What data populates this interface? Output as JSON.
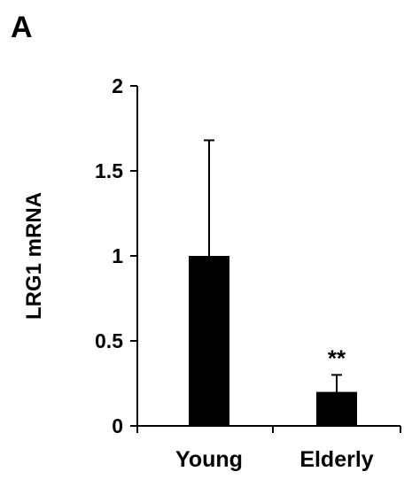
{
  "panel_label": "A",
  "chart_data": {
    "type": "bar",
    "categories": [
      "Young",
      "Elderly"
    ],
    "values": [
      1.0,
      0.2
    ],
    "error_plus": [
      0.68,
      0.1
    ],
    "annotations": [
      "",
      "**"
    ],
    "xlabel": "",
    "ylabel": "LRG1 mRNA",
    "ylim": [
      0,
      2
    ],
    "yticks": [
      0,
      0.5,
      1,
      1.5,
      2
    ],
    "ytick_labels": [
      "0",
      "0.5",
      "1",
      "1.5",
      "2"
    ],
    "grid": false,
    "bar_color": "#000000"
  }
}
